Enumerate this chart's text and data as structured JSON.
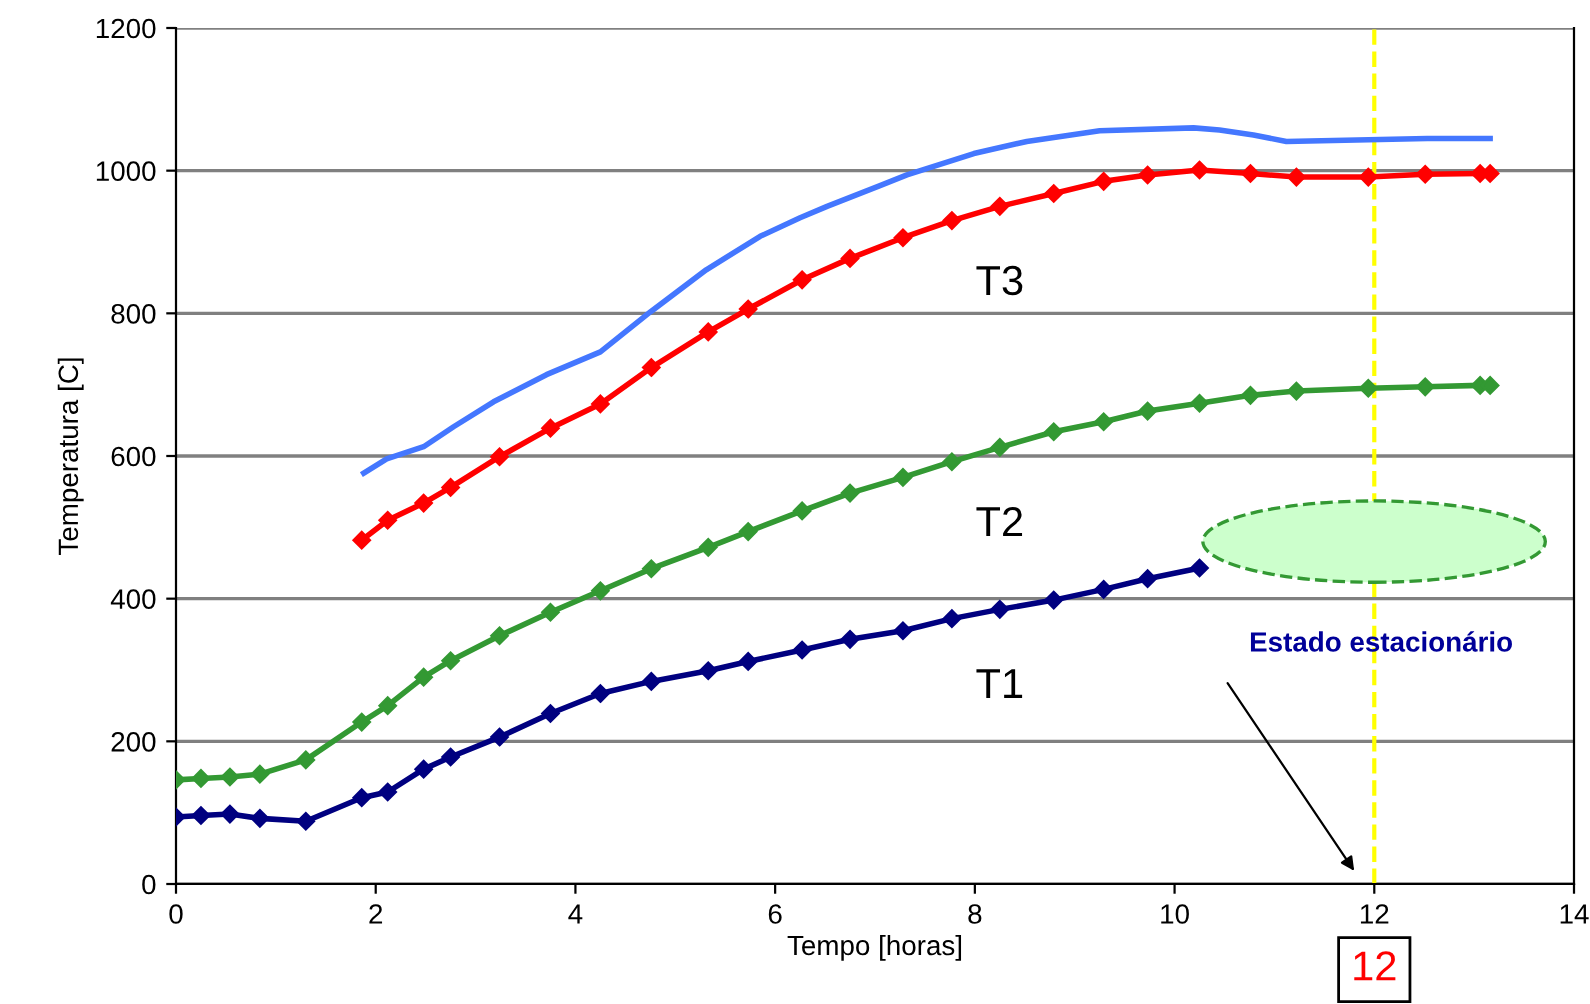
{
  "chart_data": {
    "type": "line",
    "xlabel": "Tempo [horas]",
    "ylabel": "Temperatura [C]",
    "xlim": [
      0,
      14
    ],
    "ylim": [
      0,
      1200
    ],
    "xticks": [
      0,
      2,
      4,
      6,
      8,
      10,
      12,
      14
    ],
    "yticks": [
      0,
      200,
      400,
      600,
      800,
      1000,
      1200
    ],
    "grid": "y",
    "legend": false,
    "line_style": "solid",
    "series": [
      {
        "name": "T1",
        "color": "#000080",
        "marker": "diamond",
        "x": [
          0,
          0.25,
          0.54,
          0.84,
          1.3,
          1.86,
          2.12,
          2.48,
          2.75,
          3.24,
          3.75,
          4.25,
          4.76,
          5.33,
          5.73,
          6.27,
          6.75,
          7.28,
          7.77,
          8.25,
          8.79,
          9.29,
          9.73,
          10.25
        ],
        "values": [
          94,
          96,
          98,
          92,
          88,
          121,
          129,
          161,
          178,
          206,
          239,
          267,
          284,
          299,
          312,
          328,
          343,
          355,
          372,
          385,
          398,
          413,
          428,
          443
        ]
      },
      {
        "name": "T2",
        "color": "#339933",
        "marker": "diamond",
        "x": [
          0,
          0.25,
          0.54,
          0.84,
          1.3,
          1.86,
          2.12,
          2.48,
          2.75,
          3.24,
          3.75,
          4.25,
          4.76,
          5.33,
          5.73,
          6.27,
          6.75,
          7.28,
          7.77,
          8.25,
          8.79,
          9.29,
          9.73,
          10.25,
          10.76,
          11.22,
          11.94,
          12.51,
          13.06,
          13.16
        ],
        "values": [
          146,
          148,
          150,
          154,
          174,
          227,
          250,
          290,
          313,
          348,
          381,
          411,
          442,
          472,
          494,
          523,
          548,
          570,
          592,
          612,
          634,
          648,
          663,
          674,
          685,
          691,
          695,
          697,
          699,
          699
        ]
      },
      {
        "name": "T3",
        "color": "#ff0000",
        "marker": "diamond",
        "x": [
          1.86,
          2.12,
          2.48,
          2.75,
          3.24,
          3.75,
          4.25,
          4.76,
          5.33,
          5.73,
          6.27,
          6.75,
          7.28,
          7.77,
          8.25,
          8.79,
          9.29,
          9.73,
          10.25,
          10.76,
          11.22,
          11.94,
          12.51,
          13.06,
          13.16
        ],
        "values": [
          482,
          510,
          534,
          556,
          599,
          639,
          673,
          724,
          774,
          806,
          847,
          877,
          906,
          930,
          950,
          968,
          985,
          994,
          1001,
          996,
          991,
          991,
          995,
          996,
          996
        ]
      },
      {
        "color": "#4477ff",
        "marker": "none",
        "x": [
          1.88,
          2.11,
          2.48,
          2.78,
          3.18,
          3.71,
          4.25,
          4.75,
          5.31,
          5.85,
          6.25,
          6.52,
          7.05,
          7.32,
          7.99,
          8.52,
          9.25,
          10.19,
          10.45,
          10.79,
          11.12,
          12.53,
          13.16
        ],
        "values": [
          576,
          596,
          613,
          641,
          676,
          714,
          746,
          802,
          861,
          908,
          934,
          950,
          979,
          994,
          1024,
          1041,
          1056,
          1060,
          1057,
          1050,
          1041,
          1045,
          1045
        ]
      }
    ],
    "ref_lines": [
      {
        "axis": "x",
        "value": 12,
        "label": "12",
        "color": "#ffff00",
        "line_style": "dashed"
      }
    ],
    "annotations": [
      "Estado estacionário"
    ]
  }
}
